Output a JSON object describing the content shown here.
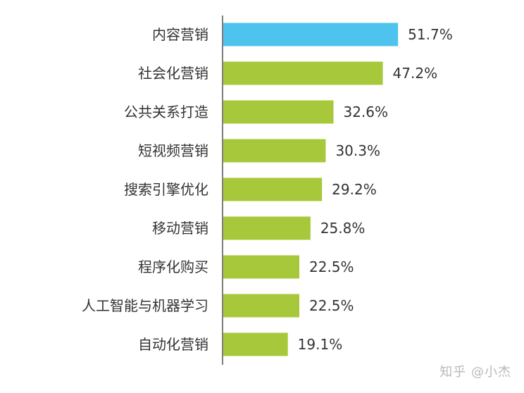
{
  "chart_data": {
    "type": "bar",
    "orientation": "horizontal",
    "categories": [
      "内容营销",
      "社会化营销",
      "公共关系打造",
      "短视频营销",
      "搜索引擎优化",
      "移动营销",
      "程序化购买",
      "人工智能与机器学习",
      "自动化营销"
    ],
    "values": [
      51.7,
      47.2,
      32.6,
      30.3,
      29.2,
      25.8,
      22.5,
      22.5,
      19.1
    ],
    "value_labels": [
      "51.7%",
      "47.2%",
      "32.6%",
      "30.3%",
      "29.2%",
      "25.8%",
      "22.5%",
      "22.5%",
      "19.1%"
    ],
    "highlight_index": 0,
    "xlim": [
      0,
      52.5
    ],
    "grid": false,
    "legend": "none",
    "colors": {
      "highlight": "#4ec3ee",
      "bar": "#a7c83a",
      "axis": "#555555",
      "text": "#333333"
    }
  },
  "watermark": "知乎 @小杰"
}
